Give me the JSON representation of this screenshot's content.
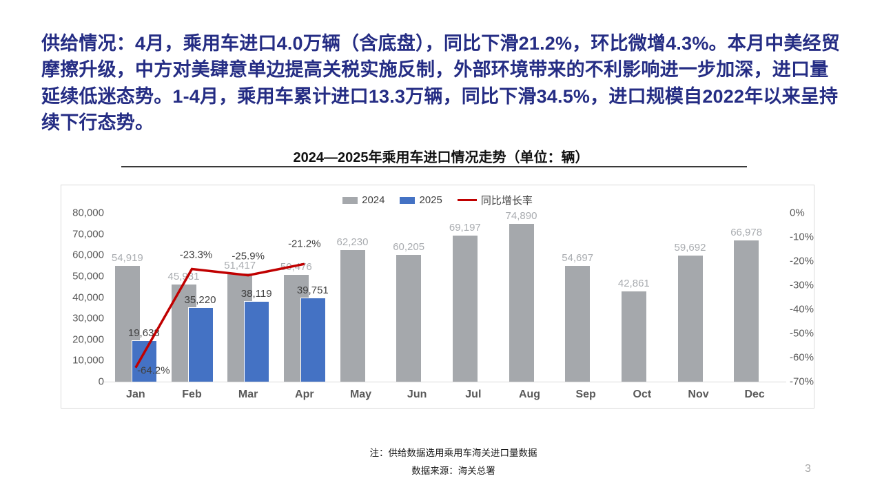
{
  "page": {
    "background": "#ffffff",
    "page_number": "3"
  },
  "header": {
    "text": "供给情况：4月，乘用车进口4.0万辆（含底盘），同比下滑21.2%，环比微增4.3%。本月中美经贸摩擦升级，中方对美肆意单边提高关税实施反制，外部环境带来的不利影响进一步加深，进口量延续低迷态势。1-4月，乘用车累计进口13.3万辆，同比下滑34.5%，进口规模自2022年以来呈持续下行态势。",
    "color": "#252D84"
  },
  "chart_data": {
    "type": "bar",
    "title": "2024—2025年乘用车进口情况走势（单位：辆）",
    "categories": [
      "Jan",
      "Feb",
      "Mar",
      "Apr",
      "May",
      "Jun",
      "Jul",
      "Aug",
      "Sep",
      "Oct",
      "Nov",
      "Dec"
    ],
    "series": [
      {
        "name": "2024",
        "type": "bar",
        "color": "#A5A8AC",
        "label_color": "#A9ACB0",
        "values": [
          54919,
          45931,
          51417,
          50476,
          62230,
          60205,
          69197,
          74890,
          54697,
          42861,
          59692,
          66978
        ]
      },
      {
        "name": "2025",
        "type": "bar",
        "color": "#4472C4",
        "label_color": "#404040",
        "values": [
          19638,
          35220,
          38119,
          39751,
          null,
          null,
          null,
          null,
          null,
          null,
          null,
          null
        ]
      },
      {
        "name": "同比增长率",
        "type": "line",
        "color": "#C00000",
        "label_color": "#404040",
        "suffix": "%",
        "values": [
          -64.2,
          -23.3,
          -25.9,
          -21.2,
          null,
          null,
          null,
          null,
          null,
          null,
          null,
          null
        ]
      }
    ],
    "left_axis": {
      "min": 0,
      "max": 80000,
      "step": 10000
    },
    "right_axis": {
      "min": -70,
      "max": 0,
      "step": 10,
      "suffix": "%"
    },
    "legend_position": "top-center",
    "grid": false
  },
  "footer": {
    "note": "注：供给数据选用乘用车海关进口量数据",
    "source": "数据来源：海关总署"
  }
}
